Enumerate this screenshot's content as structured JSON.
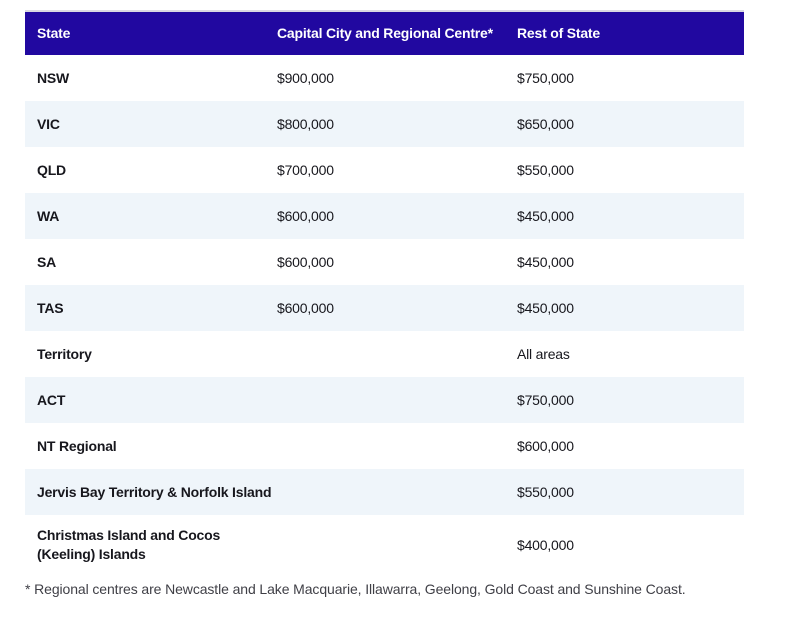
{
  "theme": {
    "header_bg": "#2108A0",
    "row_alt_bg": "#EFF5FA",
    "header_text_color": "#FFFFFF",
    "body_text_color": "#17171D",
    "footnote_text_color": "#3F3F46"
  },
  "table": {
    "columns": [
      {
        "label": "State"
      },
      {
        "label": "Capital City and Regional Centre*"
      },
      {
        "label": "Rest of State"
      }
    ],
    "rows": [
      {
        "state": "NSW",
        "capital": "$900,000",
        "rest": "$750,000"
      },
      {
        "state": "VIC",
        "capital": "$800,000",
        "rest": "$650,000"
      },
      {
        "state": "QLD",
        "capital": "$700,000",
        "rest": "$550,000"
      },
      {
        "state": "WA",
        "capital": "$600,000",
        "rest": "$450,000"
      },
      {
        "state": "SA",
        "capital": "$600,000",
        "rest": "$450,000"
      },
      {
        "state": "TAS",
        "capital": "$600,000",
        "rest": "$450,000"
      },
      {
        "state": "Territory",
        "capital": "",
        "rest": "All areas"
      },
      {
        "state": "ACT",
        "capital": "",
        "rest": "$750,000"
      },
      {
        "state": "NT Regional",
        "capital": "",
        "rest": "$600,000"
      },
      {
        "state": "Jervis Bay Territory & Norfolk Island",
        "capital": "",
        "rest": "$550,000"
      },
      {
        "state": "Christmas Island and Cocos (Keeling) Islands",
        "capital": "",
        "rest": "$400,000"
      }
    ]
  },
  "footnote": "* Regional centres are Newcastle and Lake Macquarie, Illawarra, Geelong, Gold Coast and Sunshine Coast."
}
